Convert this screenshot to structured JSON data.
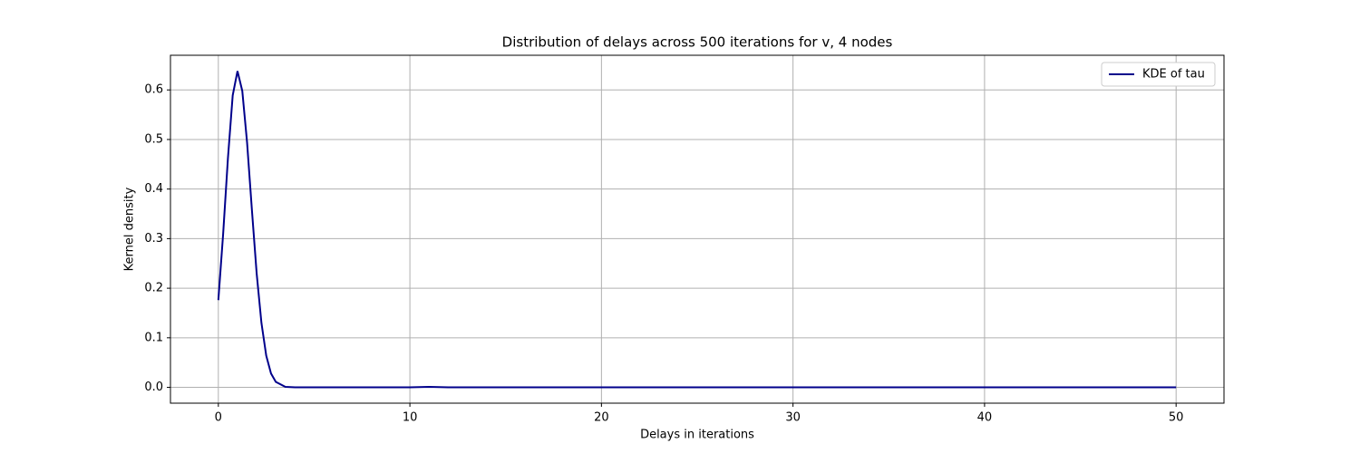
{
  "chart_data": {
    "type": "line",
    "title": "Distribution of delays across 500 iterations for v, 4 nodes",
    "xlabel": "Delays in iterations",
    "ylabel": "Kernel density",
    "x": [
      0,
      0.25,
      0.5,
      0.75,
      1,
      1.25,
      1.5,
      1.75,
      2,
      2.25,
      2.5,
      2.75,
      3,
      3.5,
      4,
      6,
      8,
      10,
      11,
      12,
      14,
      20,
      30,
      40,
      50
    ],
    "series": [
      {
        "name": "KDE of tau",
        "color": "#00008b",
        "values": [
          0.176,
          0.309,
          0.462,
          0.589,
          0.638,
          0.598,
          0.494,
          0.359,
          0.23,
          0.13,
          0.064,
          0.028,
          0.011,
          0.001,
          0,
          0,
          0,
          0,
          0.001,
          0,
          0,
          0,
          0,
          0,
          0
        ]
      }
    ],
    "xlim": [
      -2.5,
      52.5
    ],
    "ylim": [
      -0.0319,
      0.6699
    ],
    "xticks": [
      0,
      10,
      20,
      30,
      40,
      50
    ],
    "yticks": [
      {
        "value": 0,
        "label": "0.0"
      },
      0.1,
      0.2,
      0.3,
      0.4,
      0.5,
      0.6
    ],
    "grid": true,
    "legend": "upper-right"
  }
}
